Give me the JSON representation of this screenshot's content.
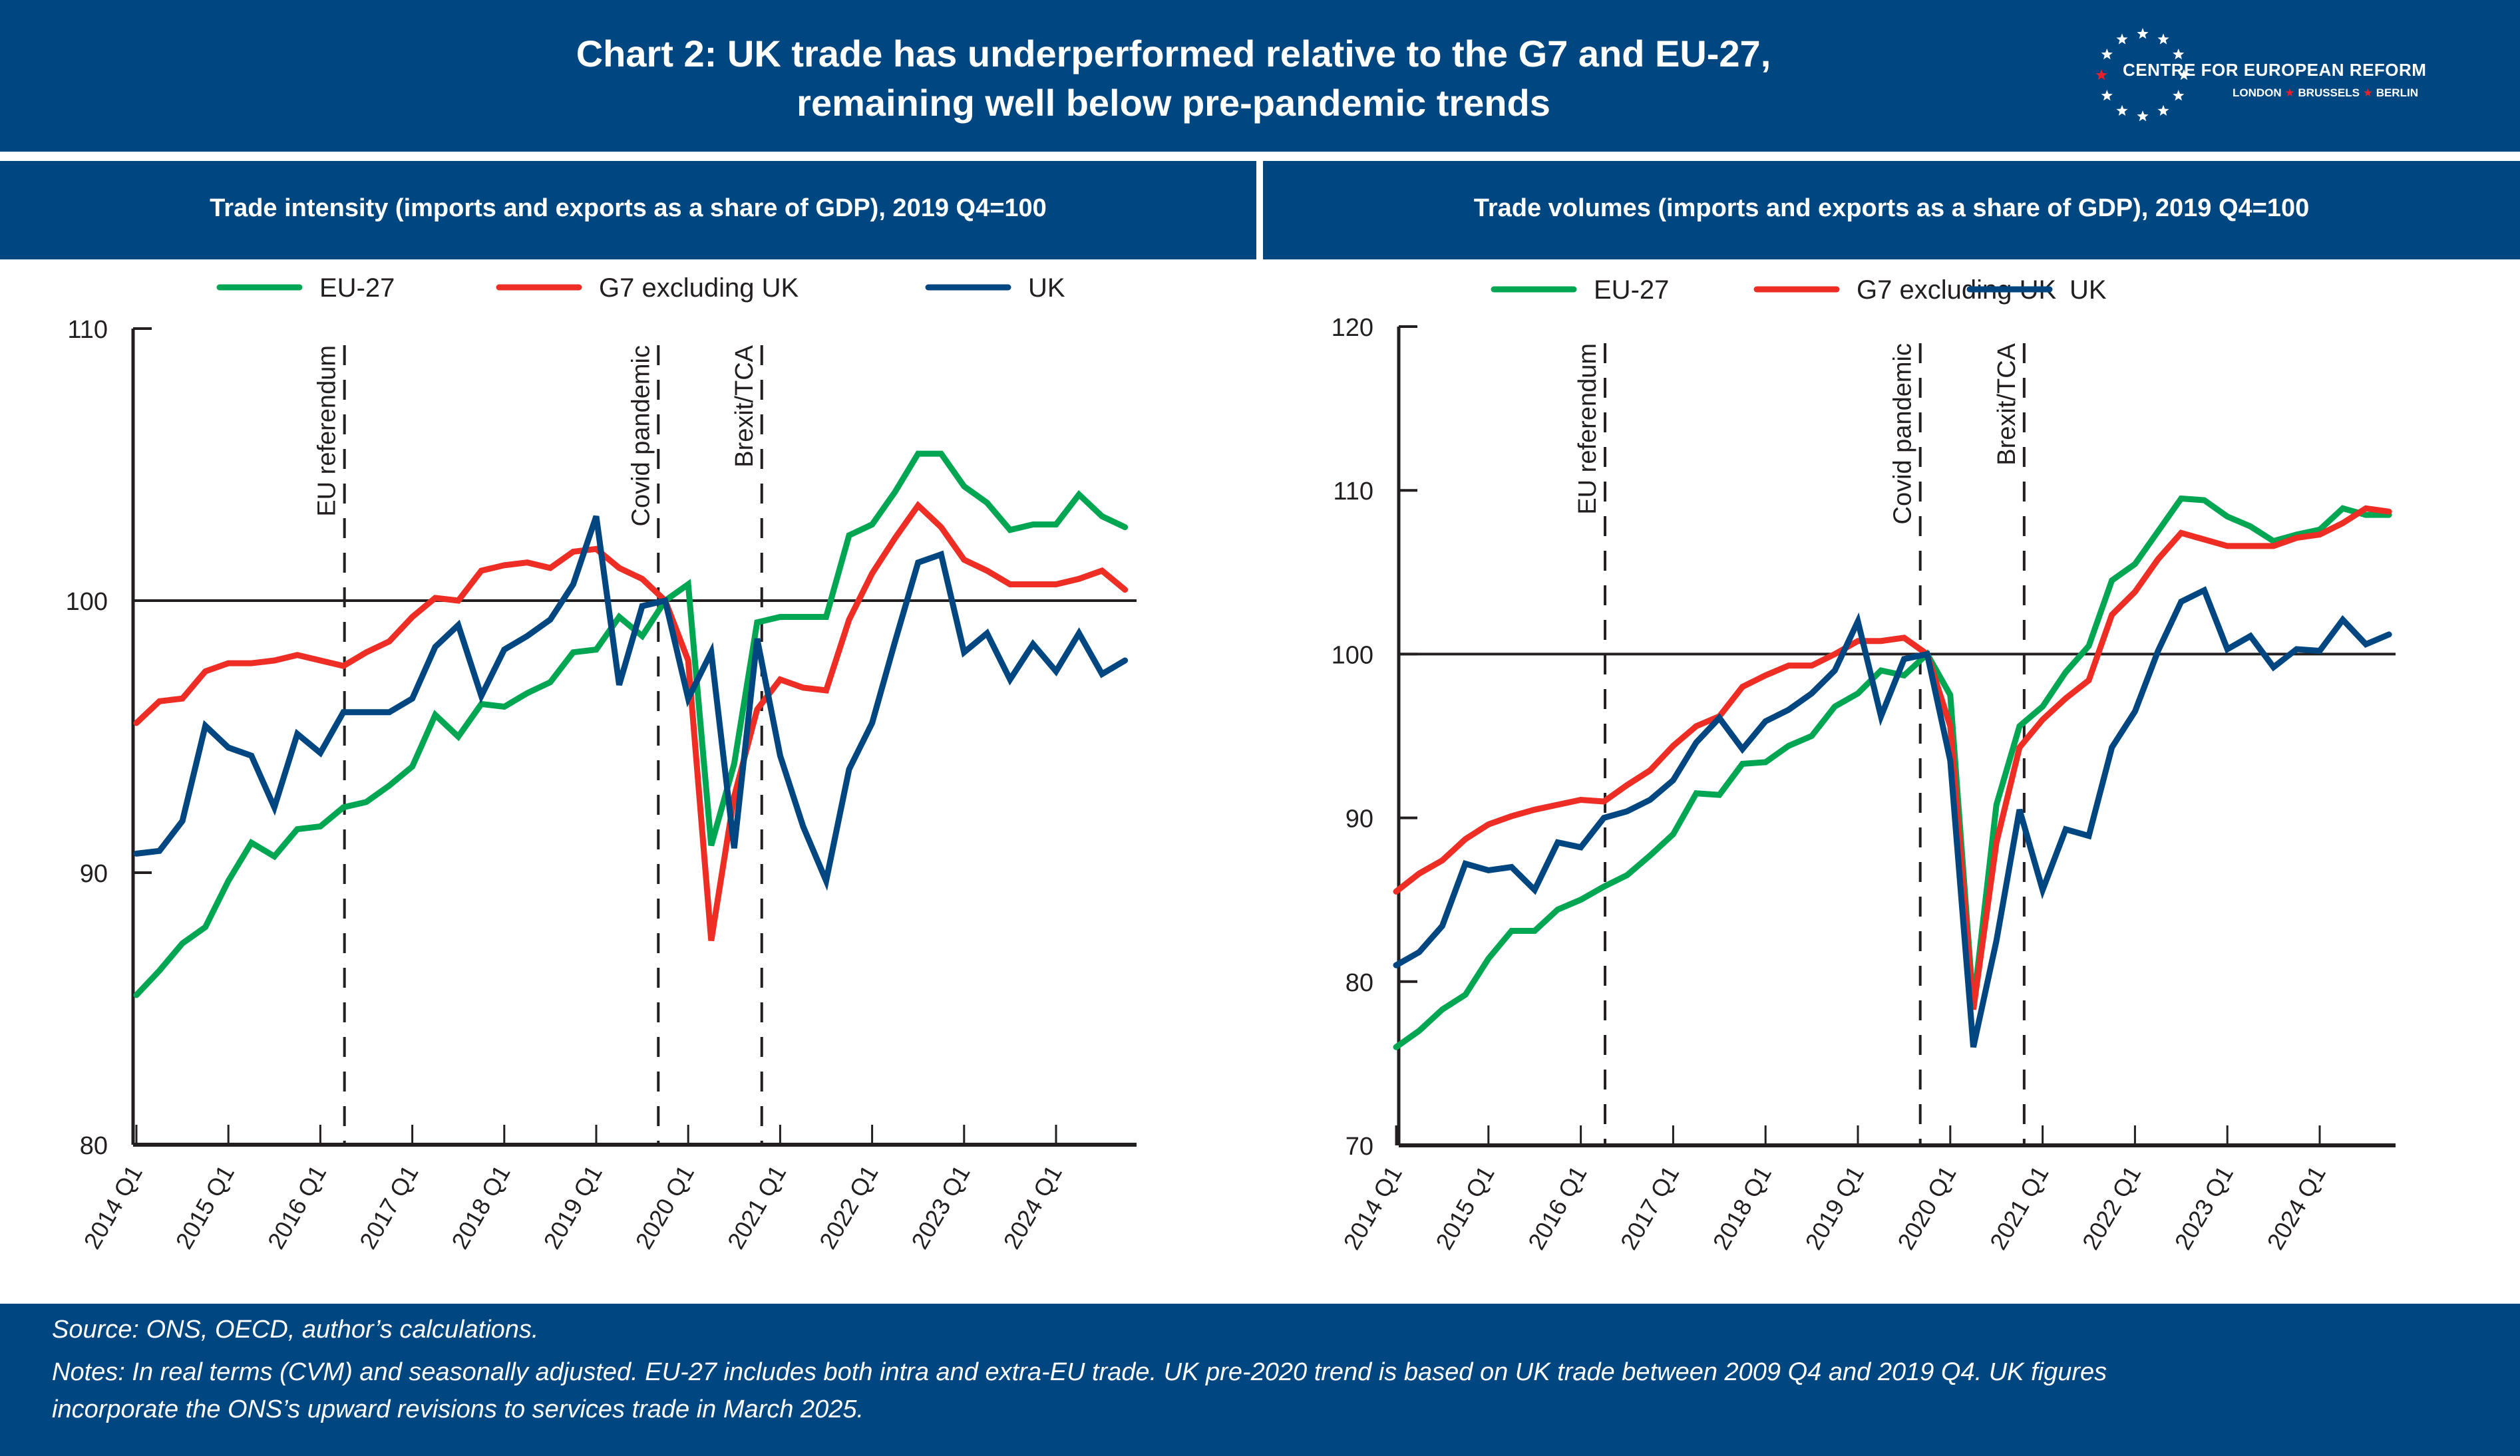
{
  "header": {
    "title_line1": "Chart 2: UK trade has underperformed relative to the G7 and EU-27,",
    "title_line2": "remaining well below pre-pandemic trends",
    "logo": {
      "name": "CENTRE FOR EUROPEAN REFORM",
      "cities": [
        "LONDON",
        "BRUSSELS",
        "BERLIN"
      ],
      "icon": "eu-star-circle-icon"
    }
  },
  "colors": {
    "band": "#004681",
    "eu27": "#00a651",
    "g7": "#ee2d24",
    "uk": "#004681",
    "axis": "#231f20"
  },
  "chart_data": [
    {
      "type": "line",
      "title": "Trade intensity (imports and exports as a share of GDP), 2019 Q4=100",
      "xlabel": "",
      "ylabel": "",
      "ylim": [
        80,
        110
      ],
      "yticks": [
        "80",
        "90",
        "100",
        "110"
      ],
      "reference_line": 100,
      "x": [
        "2014 Q1",
        "2014 Q2",
        "2014 Q3",
        "2014 Q4",
        "2015 Q1",
        "2015 Q2",
        "2015 Q3",
        "2015 Q4",
        "2016 Q1",
        "2016 Q2",
        "2016 Q3",
        "2016 Q4",
        "2017 Q1",
        "2017 Q2",
        "2017 Q3",
        "2017 Q4",
        "2018 Q1",
        "2018 Q2",
        "2018 Q3",
        "2018 Q4",
        "2019 Q1",
        "2019 Q2",
        "2019 Q3",
        "2019 Q4",
        "2020 Q1",
        "2020 Q2",
        "2020 Q3",
        "2020 Q4",
        "2021 Q1",
        "2021 Q2",
        "2021 Q3",
        "2021 Q4",
        "2022 Q1",
        "2022 Q2",
        "2022 Q3",
        "2022 Q4",
        "2023 Q1",
        "2023 Q2",
        "2023 Q3",
        "2023 Q4",
        "2024 Q1",
        "2024 Q2",
        "2024 Q3",
        "2024 Q4"
      ],
      "xtick_labels": [
        "2014 Q1",
        "2015 Q1",
        "2016 Q1",
        "2017 Q1",
        "2018 Q1",
        "2019 Q1",
        "2020 Q1",
        "2021 Q1",
        "2022 Q1",
        "2023 Q1",
        "2024 Q1"
      ],
      "legend": [
        "EU-27",
        "G7 excluding UK",
        "UK"
      ],
      "legend_position": "top",
      "grid": false,
      "series": [
        {
          "name": "EU-27",
          "color": "#00a651",
          "values": [
            85.5,
            86.4,
            87.4,
            88.0,
            89.7,
            91.1,
            90.6,
            91.6,
            91.7,
            92.4,
            92.6,
            93.2,
            93.9,
            95.8,
            95.0,
            96.2,
            96.1,
            96.6,
            97.0,
            98.1,
            98.2,
            99.4,
            98.7,
            100.0,
            100.6,
            91.0,
            94.0,
            99.2,
            99.4,
            99.4,
            99.4,
            102.4,
            102.8,
            104.0,
            105.4,
            105.4,
            104.2,
            103.6,
            102.6,
            102.8,
            102.8,
            103.9,
            103.1,
            102.7
          ]
        },
        {
          "name": "G7 excluding UK",
          "color": "#ee2d24",
          "values": [
            95.5,
            96.3,
            96.4,
            97.4,
            97.7,
            97.7,
            97.8,
            98.0,
            97.8,
            97.6,
            98.1,
            98.5,
            99.4,
            100.1,
            100.0,
            101.1,
            101.3,
            101.4,
            101.2,
            101.8,
            101.9,
            101.2,
            100.8,
            100.0,
            97.8,
            87.5,
            92.8,
            96.0,
            97.1,
            96.8,
            96.7,
            99.3,
            101.0,
            102.3,
            103.5,
            102.7,
            101.5,
            101.1,
            100.6,
            100.6,
            100.6,
            100.8,
            101.1,
            100.4
          ]
        },
        {
          "name": "UK",
          "color": "#004681",
          "values": [
            90.7,
            90.8,
            91.9,
            95.4,
            94.6,
            94.3,
            92.4,
            95.1,
            94.4,
            95.9,
            95.9,
            95.9,
            96.4,
            98.3,
            99.1,
            96.5,
            98.2,
            98.7,
            99.3,
            100.6,
            103.1,
            96.9,
            99.8,
            100.0,
            96.4,
            98.1,
            90.9,
            98.6,
            94.3,
            91.7,
            89.7,
            93.8,
            95.5,
            98.5,
            101.4,
            101.7,
            98.1,
            98.8,
            97.1,
            98.4,
            97.4,
            98.8,
            97.3,
            97.8
          ]
        }
      ],
      "annotations": [
        {
          "label": "EU referendum",
          "at": 9.05
        },
        {
          "label": "Covid pandemic",
          "at": 22.7
        },
        {
          "label": "Brexit/TCA",
          "at": 27.2
        }
      ]
    },
    {
      "type": "line",
      "title": "Trade volumes (imports and exports as a share of GDP), 2019 Q4=100",
      "xlabel": "",
      "ylabel": "",
      "ylim": [
        70,
        120
      ],
      "yticks": [
        "70",
        "80",
        "90",
        "100",
        "110",
        "120"
      ],
      "reference_line": 100,
      "x": [
        "2014 Q1",
        "2014 Q2",
        "2014 Q3",
        "2014 Q4",
        "2015 Q1",
        "2015 Q2",
        "2015 Q3",
        "2015 Q4",
        "2016 Q1",
        "2016 Q2",
        "2016 Q3",
        "2016 Q4",
        "2017 Q1",
        "2017 Q2",
        "2017 Q3",
        "2017 Q4",
        "2018 Q1",
        "2018 Q2",
        "2018 Q3",
        "2018 Q4",
        "2019 Q1",
        "2019 Q2",
        "2019 Q3",
        "2019 Q4",
        "2020 Q1",
        "2020 Q2",
        "2020 Q3",
        "2020 Q4",
        "2021 Q1",
        "2021 Q2",
        "2021 Q3",
        "2021 Q4",
        "2022 Q1",
        "2022 Q2",
        "2022 Q3",
        "2022 Q4",
        "2023 Q1",
        "2023 Q2",
        "2023 Q3",
        "2023 Q4",
        "2024 Q1",
        "2024 Q2",
        "2024 Q3",
        "2024 Q4"
      ],
      "xtick_labels": [
        "2014 Q1",
        "2015 Q1",
        "2016 Q1",
        "2017 Q1",
        "2018 Q1",
        "2019 Q1",
        "2020 Q1",
        "2021 Q1",
        "2022 Q1",
        "2023 Q1",
        "2024 Q1"
      ],
      "legend": [
        "EU-27",
        "G7 excluding UK",
        "UK"
      ],
      "legend_position": "top",
      "grid": false,
      "series": [
        {
          "name": "EU-27",
          "color": "#00a651",
          "values": [
            76.0,
            77.0,
            78.3,
            79.2,
            81.4,
            83.1,
            83.1,
            84.4,
            85.0,
            85.8,
            86.5,
            87.7,
            89.0,
            91.5,
            91.4,
            93.3,
            93.4,
            94.4,
            95.0,
            96.8,
            97.6,
            99.0,
            98.7,
            100.0,
            97.5,
            78.5,
            90.8,
            95.6,
            96.8,
            98.9,
            100.5,
            104.5,
            105.5,
            107.5,
            109.5,
            109.4,
            108.4,
            107.8,
            106.9,
            107.3,
            107.6,
            108.9,
            108.5,
            108.5
          ]
        },
        {
          "name": "G7 excluding UK",
          "color": "#ee2d24",
          "values": [
            85.5,
            86.6,
            87.4,
            88.7,
            89.6,
            90.1,
            90.5,
            90.8,
            91.1,
            91.0,
            92.0,
            92.9,
            94.4,
            95.6,
            96.2,
            98.0,
            98.7,
            99.3,
            99.3,
            100.0,
            100.8,
            100.8,
            101.0,
            100.0,
            95.6,
            78.3,
            88.5,
            94.3,
            96.0,
            97.3,
            98.4,
            102.4,
            103.8,
            105.8,
            107.4,
            107.0,
            106.6,
            106.6,
            106.6,
            107.1,
            107.3,
            108.0,
            108.9,
            108.7
          ]
        },
        {
          "name": "UK",
          "color": "#004681",
          "values": [
            81.0,
            81.8,
            83.4,
            87.2,
            86.8,
            87.0,
            85.6,
            88.5,
            88.2,
            90.0,
            90.4,
            91.1,
            92.3,
            94.6,
            96.1,
            94.2,
            95.9,
            96.6,
            97.6,
            99.0,
            102.0,
            96.2,
            99.7,
            100.0,
            93.5,
            76.0,
            82.5,
            90.5,
            85.6,
            89.3,
            88.9,
            94.3,
            96.5,
            100.2,
            103.2,
            103.9,
            100.3,
            101.1,
            99.2,
            100.3,
            100.2,
            102.1,
            100.6,
            101.2
          ]
        }
      ],
      "annotations": [
        {
          "label": "EU referendum",
          "at": 9.05
        },
        {
          "label": "Covid pandemic",
          "at": 22.7
        },
        {
          "label": "Brexit/TCA",
          "at": 27.2
        }
      ]
    }
  ],
  "footer": {
    "source": "Source: ONS, OECD, author’s calculations.",
    "notes_line1": "Notes: In real terms (CVM) and seasonally adjusted. EU-27 includes both intra and extra-EU trade. UK pre-2020 trend is based on UK trade between 2009 Q4 and 2019 Q4. UK figures",
    "notes_line2": "incorporate the ONS’s upward revisions to services trade in March 2025."
  }
}
